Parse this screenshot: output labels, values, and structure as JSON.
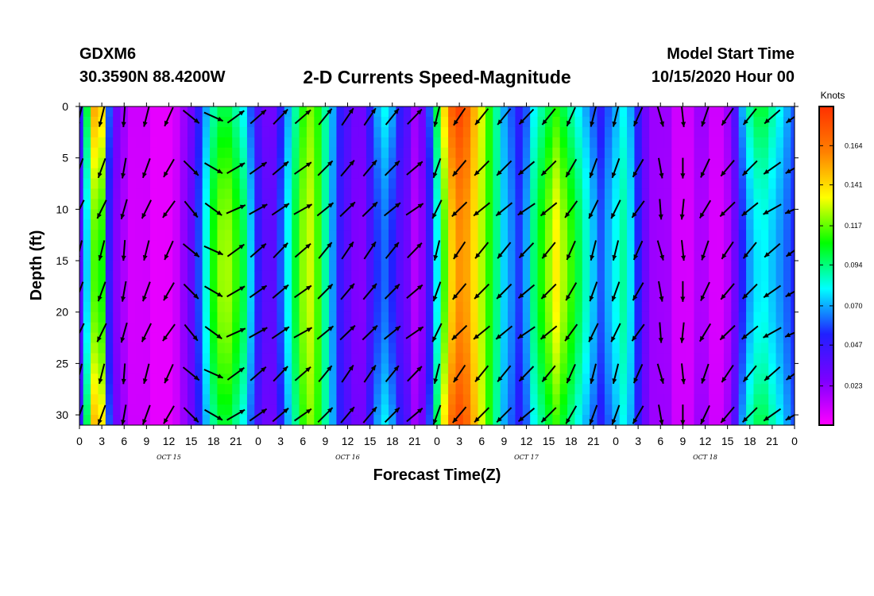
{
  "header": {
    "station": "GDXM6",
    "coords": "30.3590N 88.4200W",
    "title": "2-D Currents Speed-Magnitude",
    "start_label": "Model Start Time",
    "start_value": "10/15/2020 Hour 00"
  },
  "chart_data": {
    "type": "heatmap",
    "title": "2-D Currents Speed-Magnitude",
    "xlabel": "Forecast Time(Z)",
    "ylabel": "Depth (ft)",
    "xlim": [
      0,
      96
    ],
    "ylim": [
      0,
      31
    ],
    "y_inverted": true,
    "x_ticks_hours": [
      0,
      3,
      6,
      9,
      12,
      15,
      18,
      21,
      24,
      27,
      30,
      33,
      36,
      39,
      42,
      45,
      48,
      51,
      54,
      57,
      60,
      63,
      66,
      69,
      72,
      75,
      78,
      81,
      84,
      87,
      90,
      93,
      96
    ],
    "x_tick_labels": [
      "0",
      "3",
      "6",
      "9",
      "12",
      "15",
      "18",
      "21",
      "0",
      "3",
      "6",
      "9",
      "12",
      "15",
      "18",
      "21",
      "0",
      "3",
      "6",
      "9",
      "12",
      "15",
      "18",
      "21",
      "0",
      "3",
      "6",
      "9",
      "12",
      "15",
      "18",
      "21",
      "0"
    ],
    "date_labels": [
      {
        "hour": 12,
        "text": "OCT 15"
      },
      {
        "hour": 36,
        "text": "OCT 16"
      },
      {
        "hour": 60,
        "text": "OCT 17"
      },
      {
        "hour": 84,
        "text": "OCT 18"
      }
    ],
    "y_ticks": [
      0,
      5,
      10,
      15,
      20,
      25,
      30
    ],
    "colorbar": {
      "unit": "Knots",
      "range": [
        0,
        0.187
      ],
      "ticks": [
        "0.164",
        "0.141",
        "0.117",
        "0.094",
        "0.070",
        "0.047",
        "0.023"
      ],
      "tick_values": [
        0.164,
        0.141,
        0.117,
        0.094,
        0.07,
        0.047,
        0.023
      ],
      "colors": [
        "#ff00ff",
        "#7b00ff",
        "#2020ff",
        "#00ffff",
        "#00ff00",
        "#ffff00",
        "#ff8000",
        "#ff3000"
      ]
    },
    "time_profile": {
      "hours": [
        0,
        1,
        2,
        3,
        4,
        5,
        6,
        7,
        8,
        9,
        10,
        11,
        12,
        13,
        14,
        15,
        16,
        17,
        18,
        19,
        20,
        21,
        22,
        23,
        24,
        25,
        26,
        27,
        28,
        29,
        30,
        31,
        32,
        33,
        34,
        35,
        36,
        37,
        38,
        39,
        40,
        41,
        42,
        43,
        44,
        45,
        46,
        47,
        48,
        49,
        50,
        51,
        52,
        53,
        54,
        55,
        56,
        57,
        58,
        59,
        60,
        61,
        62,
        63,
        64,
        65,
        66,
        67,
        68,
        69,
        70,
        71,
        72,
        73,
        74,
        75,
        76,
        77,
        78,
        79,
        80,
        81,
        82,
        83,
        84,
        85,
        86,
        87,
        88,
        89,
        90,
        91,
        92,
        93,
        94,
        95,
        96
      ],
      "speed_knots": [
        0.05,
        0.1,
        0.15,
        0.14,
        0.06,
        0.03,
        0.02,
        0.01,
        0.01,
        0.01,
        0.005,
        0.005,
        0.005,
        0.01,
        0.02,
        0.03,
        0.05,
        0.07,
        0.09,
        0.1,
        0.1,
        0.09,
        0.08,
        0.06,
        0.04,
        0.03,
        0.03,
        0.05,
        0.07,
        0.09,
        0.11,
        0.12,
        0.11,
        0.09,
        0.07,
        0.05,
        0.04,
        0.03,
        0.03,
        0.05,
        0.07,
        0.08,
        0.07,
        0.05,
        0.04,
        0.02,
        0.03,
        0.06,
        0.1,
        0.14,
        0.17,
        0.18,
        0.17,
        0.15,
        0.13,
        0.11,
        0.09,
        0.07,
        0.06,
        0.05,
        0.06,
        0.08,
        0.09,
        0.1,
        0.11,
        0.1,
        0.09,
        0.08,
        0.07,
        0.06,
        0.05,
        0.06,
        0.07,
        0.08,
        0.07,
        0.05,
        0.03,
        0.02,
        0.02,
        0.02,
        0.01,
        0.01,
        0.01,
        0.02,
        0.02,
        0.01,
        0.01,
        0.02,
        0.04,
        0.07,
        0.09,
        0.1,
        0.1,
        0.09,
        0.08,
        0.07,
        0.06
      ]
    },
    "vector_grid": {
      "hours": [
        0,
        3,
        6,
        9,
        12,
        15,
        18,
        21,
        24,
        27,
        30,
        33,
        36,
        39,
        42,
        45,
        48,
        51,
        54,
        57,
        60,
        63,
        66,
        69,
        72,
        75,
        78,
        81,
        84,
        87,
        90,
        93,
        96
      ],
      "depths": [
        1,
        6,
        10,
        14,
        18,
        22,
        26,
        30
      ],
      "direction_sequence_deg": [
        200,
        200,
        190,
        200,
        210,
        135,
        120,
        60,
        55,
        50,
        55,
        45,
        40,
        40,
        45,
        50,
        200,
        220,
        225,
        225,
        230,
        225,
        210,
        200,
        200,
        210,
        170,
        180,
        205,
        220,
        225,
        235,
        240
      ]
    }
  }
}
